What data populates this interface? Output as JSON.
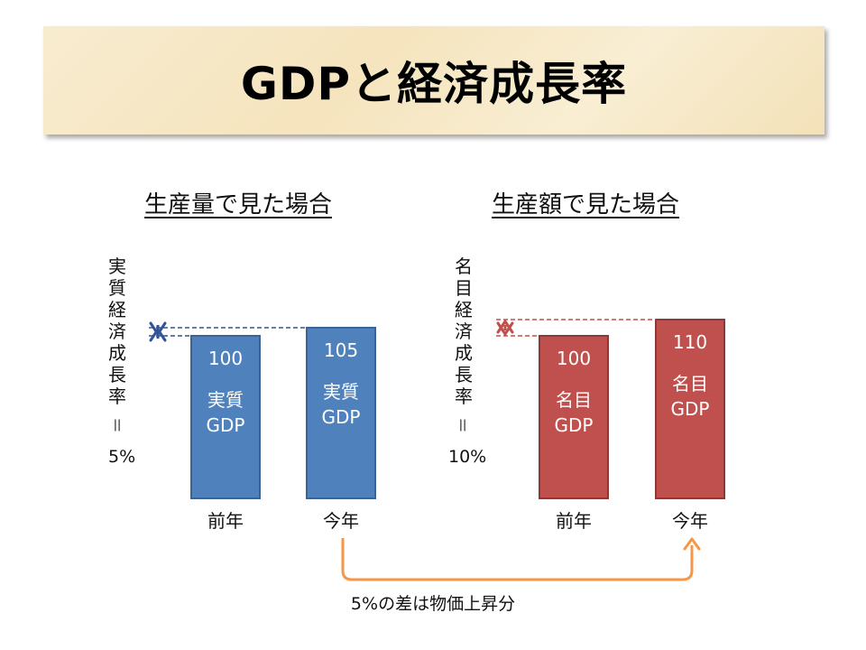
{
  "title": "GDPと経済成長率",
  "colors": {
    "real": "#4f81bd",
    "real_border": "#3a6496",
    "nominal": "#c0504d",
    "nominal_border": "#8c3836",
    "real_guide": "#2f5597",
    "nominal_guide": "#c0504d",
    "footnote_arrow": "#f79646"
  },
  "footnote": "5%の差は物価上昇分",
  "chart_data": [
    {
      "type": "bar",
      "title": "生産量で見た場合",
      "categories": [
        "前年",
        "今年"
      ],
      "values": [
        100,
        105
      ],
      "value_labels": [
        "100",
        "105"
      ],
      "bar_text": [
        "実質\nGDP",
        "実質\nGDP"
      ],
      "growth_label": "実質経済成長率",
      "equals": "＝",
      "growth_value": "5%",
      "series": [
        {
          "name": "実質GDP",
          "values": [
            100,
            105
          ]
        }
      ]
    },
    {
      "type": "bar",
      "title": "生産額で見た場合",
      "categories": [
        "前年",
        "今年"
      ],
      "values": [
        100,
        110
      ],
      "value_labels": [
        "100",
        "110"
      ],
      "bar_text": [
        "名目\nGDP",
        "名目\nGDP"
      ],
      "growth_label": "名目経済成長率",
      "equals": "＝",
      "growth_value": "10%",
      "series": [
        {
          "name": "名目GDP",
          "values": [
            100,
            110
          ]
        }
      ]
    }
  ]
}
